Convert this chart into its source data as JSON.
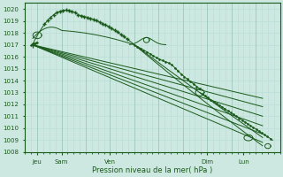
{
  "xlabel": "Pression niveau de la mer( hPa )",
  "ylim": [
    1008,
    1020.5
  ],
  "xlim": [
    0,
    10.5
  ],
  "yticks": [
    1008,
    1009,
    1010,
    1011,
    1012,
    1013,
    1014,
    1015,
    1016,
    1017,
    1018,
    1019,
    1020
  ],
  "xtick_pos": [
    0.5,
    1.5,
    3.5,
    7.5,
    9.0
  ],
  "xtick_lbl": [
    "Jeu",
    "Sam",
    "Ven",
    "Dim",
    "Lun"
  ],
  "background_color": "#cce8e0",
  "grid_major_color": "#a0c8bc",
  "grid_minor_color": "#b8dcd4",
  "line_color": "#1a5a1a",
  "figsize": [
    3.2,
    2.0
  ],
  "dpi": 100,
  "straight_lines": [
    [
      0.3,
      9.8,
      1017.0,
      1008.8
    ],
    [
      0.3,
      9.8,
      1017.0,
      1009.5
    ],
    [
      0.3,
      9.8,
      1017.0,
      1010.2
    ],
    [
      0.3,
      9.8,
      1017.0,
      1011.0
    ],
    [
      0.3,
      9.8,
      1017.0,
      1011.8
    ],
    [
      0.3,
      9.8,
      1017.0,
      1012.5
    ]
  ]
}
